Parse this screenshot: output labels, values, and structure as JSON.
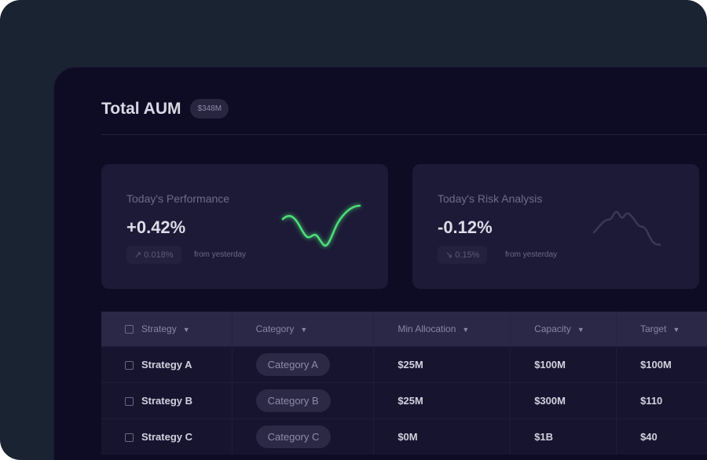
{
  "header": {
    "title": "Total AUM",
    "badge": "$348M"
  },
  "cards": [
    {
      "label": "Today's Performance",
      "value": "+0.42%",
      "change": "↗ 0.018%",
      "from": "from yesterday",
      "line_color": "#4ee07a"
    },
    {
      "label": "Today's Risk Analysis",
      "value": "-0.12%",
      "change": "↘ 0.15%",
      "from": "from yesterday",
      "line_color": "#3a3856"
    }
  ],
  "table": {
    "columns": [
      "Strategy",
      "Category",
      "Min Allocation",
      "Capacity",
      "Target"
    ],
    "rows": [
      {
        "strategy": "Strategy A",
        "category": "Category A",
        "min": "$25M",
        "capacity": "$100M",
        "target": "$100M"
      },
      {
        "strategy": "Strategy B",
        "category": "Category B",
        "min": "$25M",
        "capacity": "$300M",
        "target": "$110"
      },
      {
        "strategy": "Strategy C",
        "category": "Category C",
        "min": "$0M",
        "capacity": "$1B",
        "target": "$40"
      }
    ]
  }
}
